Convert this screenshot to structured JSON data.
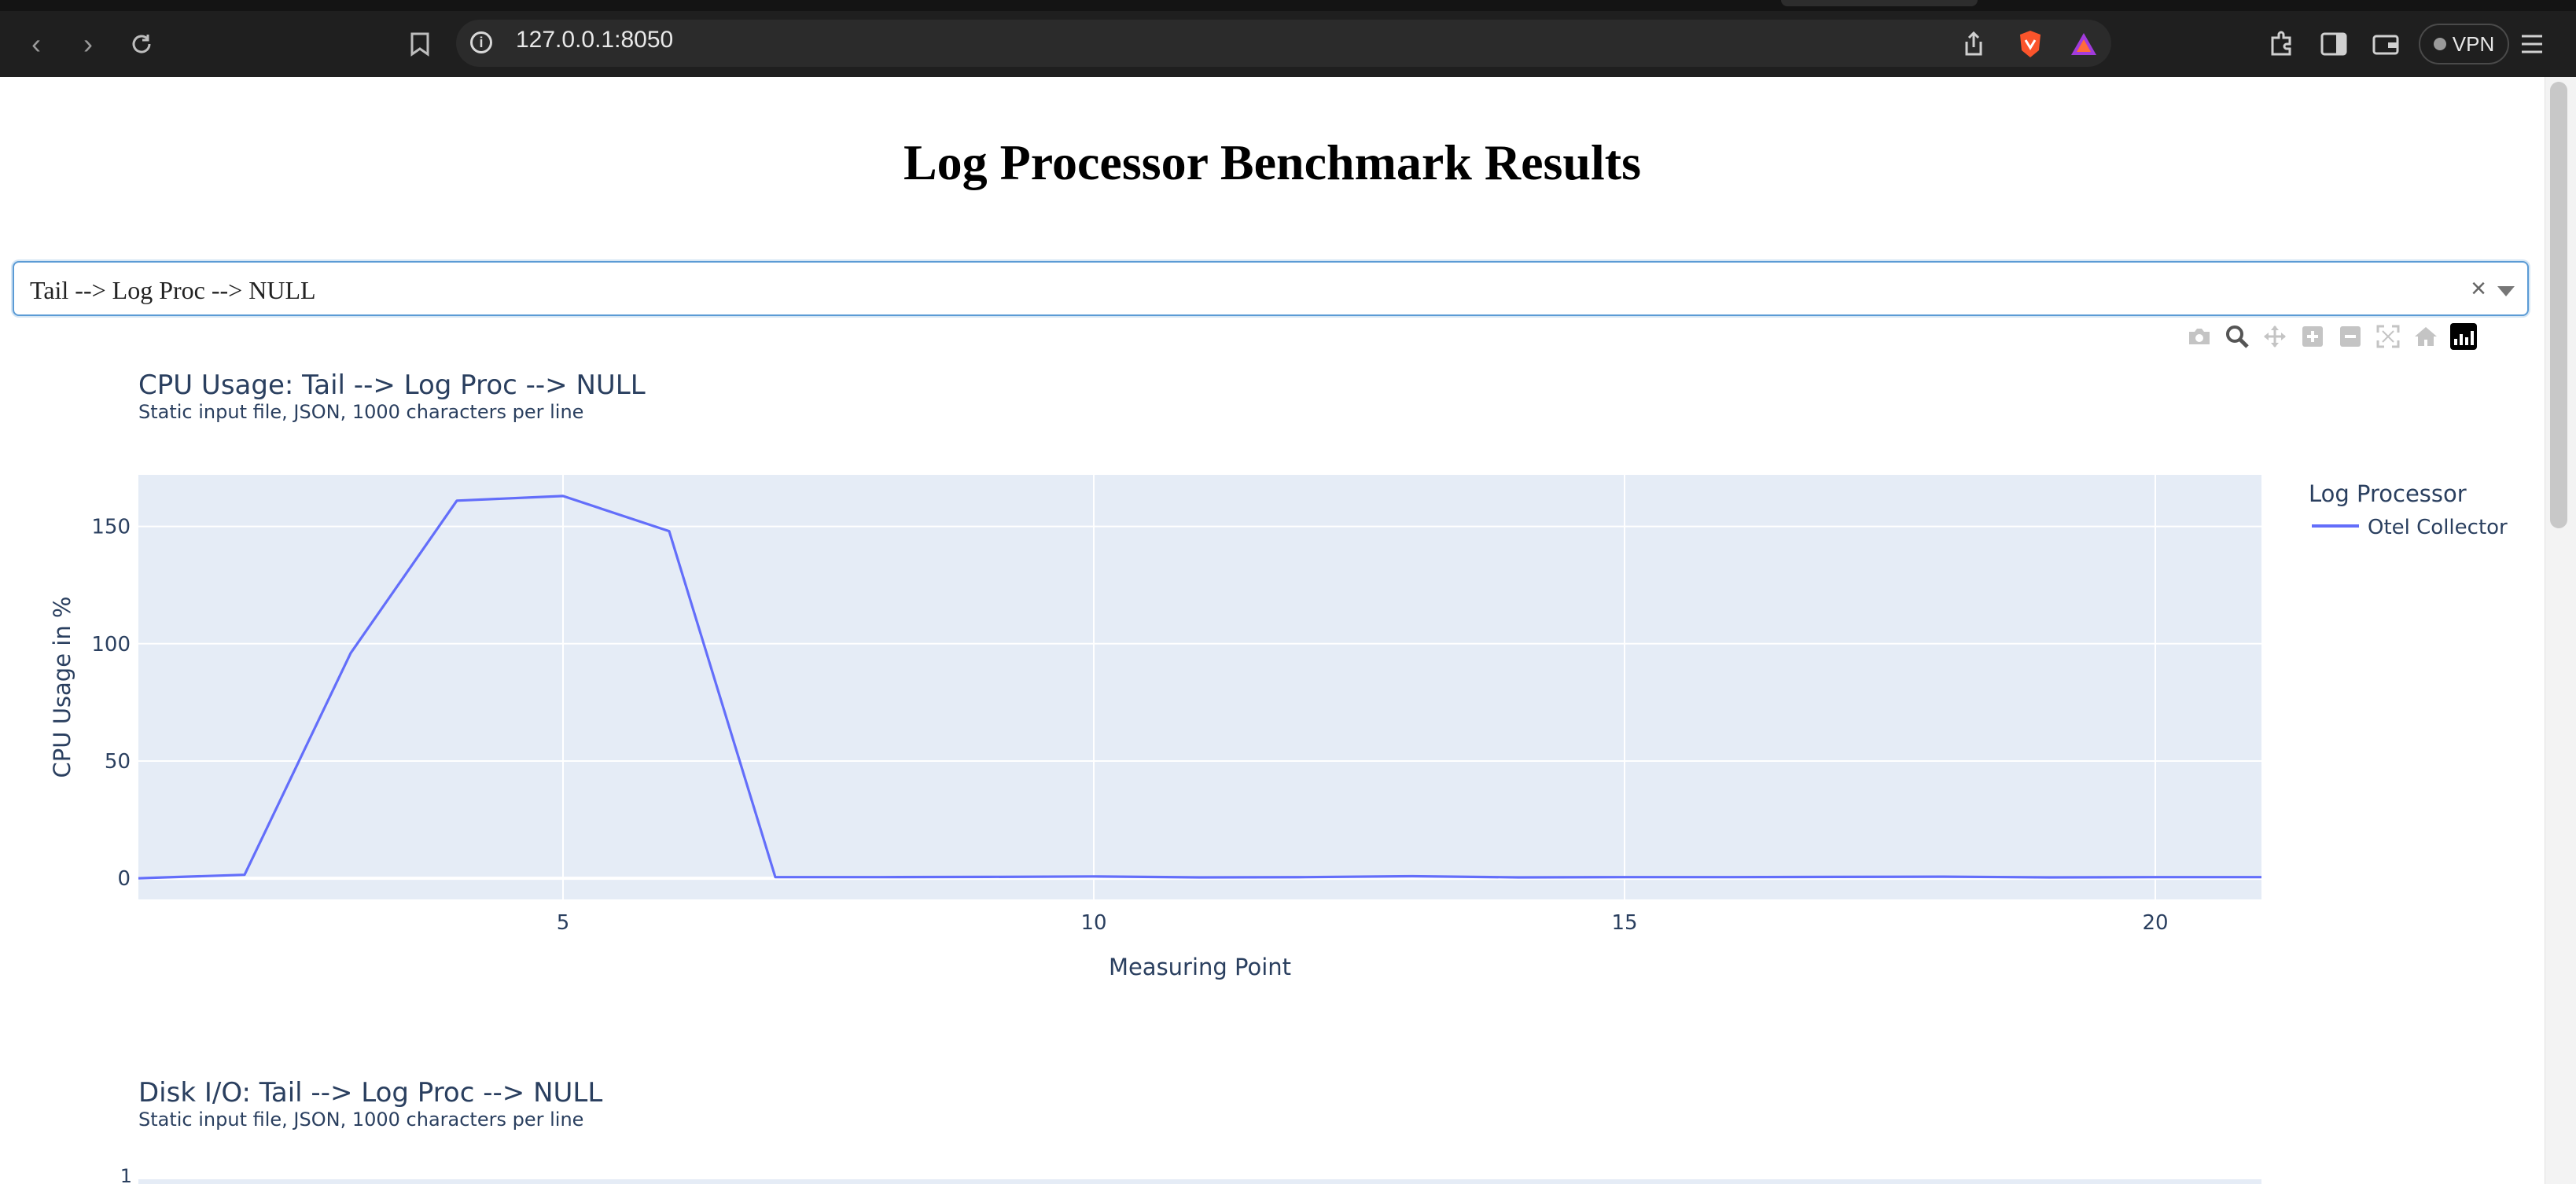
{
  "browser": {
    "url": "127.0.0.1:8050",
    "vpn_label": "VPN"
  },
  "page": {
    "title": "Log Processor Benchmark Results"
  },
  "scenario_dropdown": {
    "selected": "Tail --> Log Proc --> NULL",
    "clear_symbol": "×"
  },
  "modebar": {
    "icons": [
      "camera-icon",
      "zoom-icon",
      "pan-icon",
      "zoom-in-icon",
      "zoom-out-icon",
      "autoscale-icon",
      "reset-axes-icon",
      "plotly-logo"
    ]
  },
  "cpu_chart": {
    "title": "CPU Usage: Tail --> Log Proc --> NULL",
    "subtitle": "Static input file, JSON, 1000 characters per line",
    "legend_title": "Log Processor"
  },
  "disk_chart": {
    "title": "Disk I/O: Tail --> Log Proc --> NULL",
    "subtitle": "Static input file, JSON, 1000 characters per line",
    "first_tick": "1"
  },
  "chart_data": [
    {
      "type": "line",
      "title": "CPU Usage: Tail --> Log Proc --> NULL",
      "subtitle": "Static input file, JSON, 1000 characters per line",
      "xlabel": "Measuring Point",
      "ylabel": "CPU Usage in %",
      "xlim": [
        1,
        21
      ],
      "ylim": [
        -9,
        172
      ],
      "xticks": [
        5,
        10,
        15,
        20
      ],
      "yticks": [
        0,
        50,
        100,
        150
      ],
      "grid": true,
      "legend_title": "Log Processor",
      "legend_position": "right",
      "series": [
        {
          "name": "Otel Collector",
          "color": "#636efa",
          "x": [
            1,
            2,
            3,
            4,
            5,
            6,
            7,
            8,
            9,
            10,
            11,
            12,
            13,
            14,
            15,
            16,
            17,
            18,
            19,
            20,
            21
          ],
          "y": [
            0,
            1.5,
            96,
            161,
            163,
            148,
            0.5,
            0.5,
            0.6,
            0.8,
            0.4,
            0.5,
            0.9,
            0.4,
            0.5,
            0.5,
            0.6,
            0.7,
            0.4,
            0.5,
            0.5
          ]
        }
      ]
    }
  ]
}
